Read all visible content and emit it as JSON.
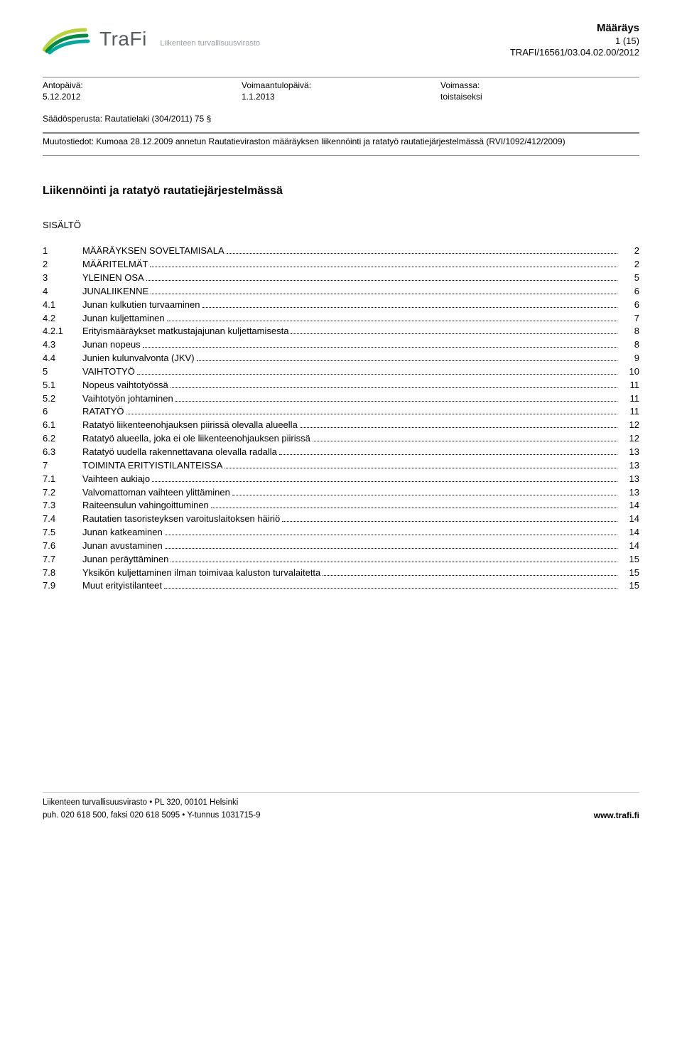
{
  "header": {
    "logo": {
      "brand": "TraFi",
      "subtitle": "Liikenteen turvallisuusvirasto"
    },
    "doc_type": "Määräys",
    "page_info": "1 (15)",
    "doc_number": "TRAFI/16561/03.04.02.00/2012",
    "colors": {
      "brand_text": "#565b5e",
      "brand_sub": "#989ea2",
      "wave1": "#b7d334",
      "wave2": "#008b45",
      "wave3": "#00a9a0"
    }
  },
  "meta": {
    "col1": {
      "label": "Antopäivä:",
      "value": "5.12.2012"
    },
    "col2": {
      "label": "Voimaantulopäivä:",
      "value": "1.1.2013"
    },
    "col3": {
      "label": "Voimassa:",
      "value": "toistaiseksi"
    },
    "basis": {
      "label": "Säädösperusta:",
      "value": "Rautatielaki (304/2011) 75 §"
    },
    "changes": {
      "label": "Muutostiedot:",
      "value": "Kumoaa 28.12.2009 annetun Rautatieviraston määräyksen liikennöinti ja ratatyö rautatie­järjestelmässä (RVI/1092/412/2009)"
    }
  },
  "title": "Liikennöinti ja ratatyö rautatiejärjestelmässä",
  "toc_heading": "SISÄLTÖ",
  "toc": [
    {
      "num": "1",
      "label": "MÄÄRÄYKSEN SOVELTAMISALA",
      "page": "2"
    },
    {
      "num": "2",
      "label": "MÄÄRITELMÄT",
      "page": "2"
    },
    {
      "num": "3",
      "label": "YLEINEN OSA",
      "page": "5"
    },
    {
      "num": "4",
      "label": "JUNALIIKENNE",
      "page": "6"
    },
    {
      "num": "4.1",
      "label": "Junan kulkutien turvaaminen",
      "page": "6"
    },
    {
      "num": "4.2",
      "label": "Junan kuljettaminen",
      "page": "7"
    },
    {
      "num": "4.2.1",
      "label": "Erityismääräykset matkustajajunan kuljettamisesta",
      "page": "8"
    },
    {
      "num": "4.3",
      "label": "Junan nopeus",
      "page": "8"
    },
    {
      "num": "4.4",
      "label": "Junien kulunvalvonta (JKV)",
      "page": "9"
    },
    {
      "num": "5",
      "label": "VAIHTOTYÖ",
      "page": "10"
    },
    {
      "num": "5.1",
      "label": "Nopeus vaihtotyössä",
      "page": "11"
    },
    {
      "num": "5.2",
      "label": "Vaihtotyön johtaminen",
      "page": "11"
    },
    {
      "num": "6",
      "label": "RATATYÖ",
      "page": "11"
    },
    {
      "num": "6.1",
      "label": "Ratatyö liikenteenohjauksen piirissä olevalla alueella",
      "page": "12"
    },
    {
      "num": "6.2",
      "label": "Ratatyö alueella, joka ei ole liikenteenohjauksen piirissä",
      "page": "12"
    },
    {
      "num": "6.3",
      "label": "Ratatyö uudella rakennettavana olevalla radalla",
      "page": "13"
    },
    {
      "num": "7",
      "label": "TOIMINTA ERITYISTILANTEISSA",
      "page": "13"
    },
    {
      "num": "7.1",
      "label": "Vaihteen aukiajo",
      "page": "13"
    },
    {
      "num": "7.2",
      "label": "Valvomattoman vaihteen ylittäminen",
      "page": "13"
    },
    {
      "num": "7.3",
      "label": "Raiteensulun vahingoittuminen",
      "page": "14"
    },
    {
      "num": "7.4",
      "label": "Rautatien tasoristeyksen varoituslaitoksen häiriö",
      "page": "14"
    },
    {
      "num": "7.5",
      "label": "Junan katkeaminen",
      "page": "14"
    },
    {
      "num": "7.6",
      "label": "Junan avustaminen",
      "page": "14"
    },
    {
      "num": "7.7",
      "label": "Junan peräyttäminen",
      "page": "15"
    },
    {
      "num": "7.8",
      "label": "Yksikön kuljettaminen ilman toimivaa kaluston turvalaitetta",
      "page": "15"
    },
    {
      "num": "7.9",
      "label": "Muut erityistilanteet",
      "page": "15"
    }
  ],
  "footer": {
    "line1": "Liikenteen turvallisuusvirasto • PL 320, 00101 Helsinki",
    "line2": "puh. 020 618 500, faksi 020 618 5095 • Y-tunnus 1031715-9",
    "url": "www.trafi.fi"
  }
}
